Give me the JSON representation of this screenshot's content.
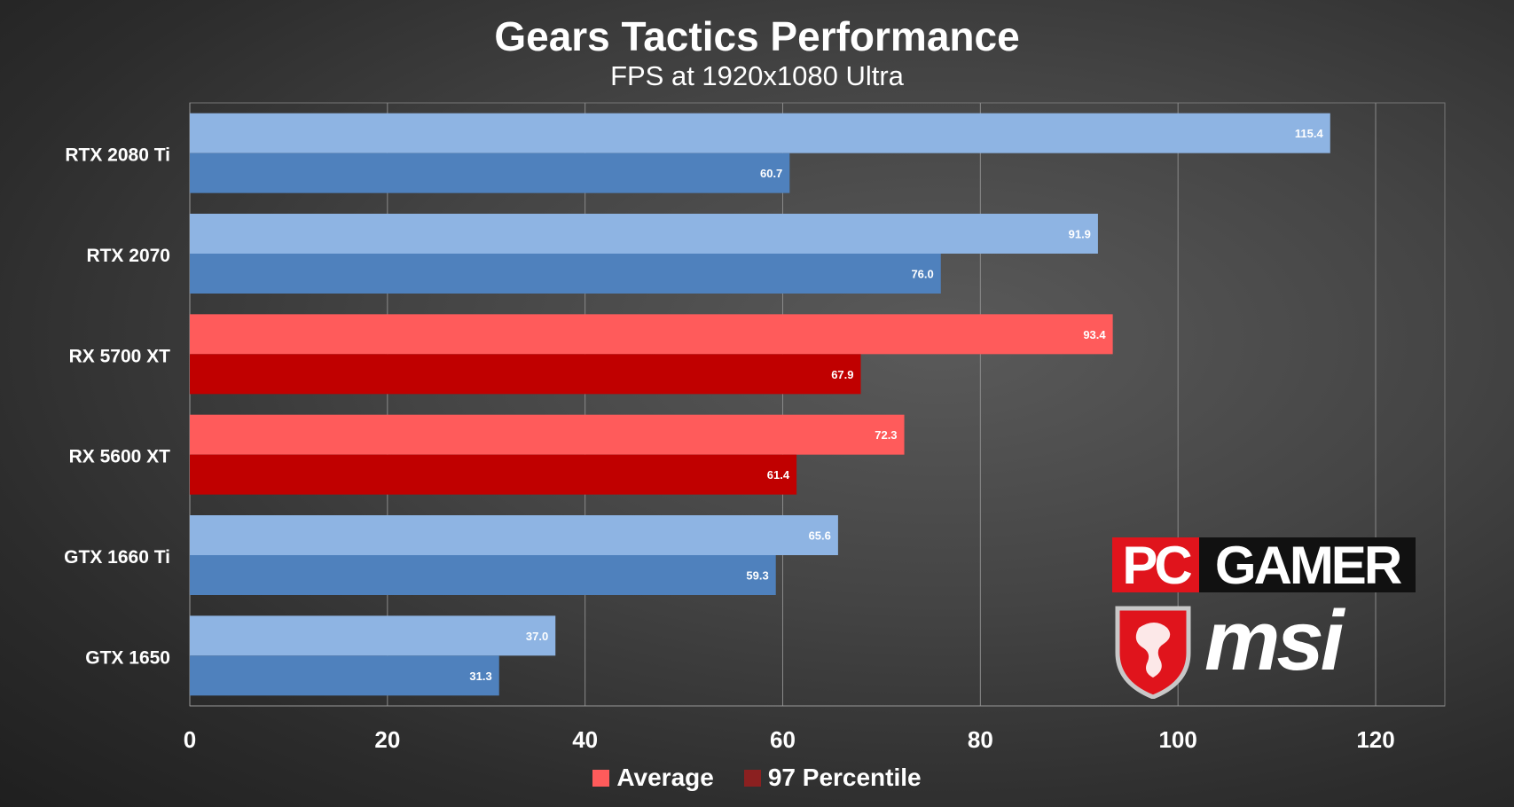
{
  "chart_data": {
    "type": "bar",
    "orientation": "horizontal",
    "title": "Gears Tactics Performance",
    "subtitle": "FPS at 1920x1080 Ultra",
    "categories": [
      "RTX 2080 Ti",
      "RTX 2070",
      "RX 5700 XT",
      "RX 5600 XT",
      "GTX 1660 Ti",
      "GTX 1650"
    ],
    "series": [
      {
        "name": "Average",
        "values": [
          115.4,
          91.9,
          93.4,
          72.3,
          65.6,
          37.0
        ]
      },
      {
        "name": "97 Percentile",
        "values": [
          60.7,
          76.0,
          67.9,
          61.4,
          59.3,
          31.3
        ]
      }
    ],
    "xlim": [
      0,
      127
    ],
    "xticks": [
      0,
      20,
      40,
      60,
      80,
      100,
      120
    ],
    "grid": true,
    "legend": "bottom",
    "colors": {
      "nvidia_average": "#8eb4e3",
      "nvidia_percentile": "#4f81bd",
      "amd_average": "#ff5b5b",
      "amd_percentile": "#c00000",
      "legend_average": "#ff5b5b",
      "legend_percentile": "#8b2020"
    },
    "vendor": [
      "nvidia",
      "nvidia",
      "amd",
      "amd",
      "nvidia",
      "nvidia"
    ]
  },
  "legend": {
    "average_label": "Average",
    "percentile_label": "97 Percentile"
  },
  "logos": {
    "pc": "PC",
    "gamer": "GAMER",
    "msi": "msi"
  }
}
